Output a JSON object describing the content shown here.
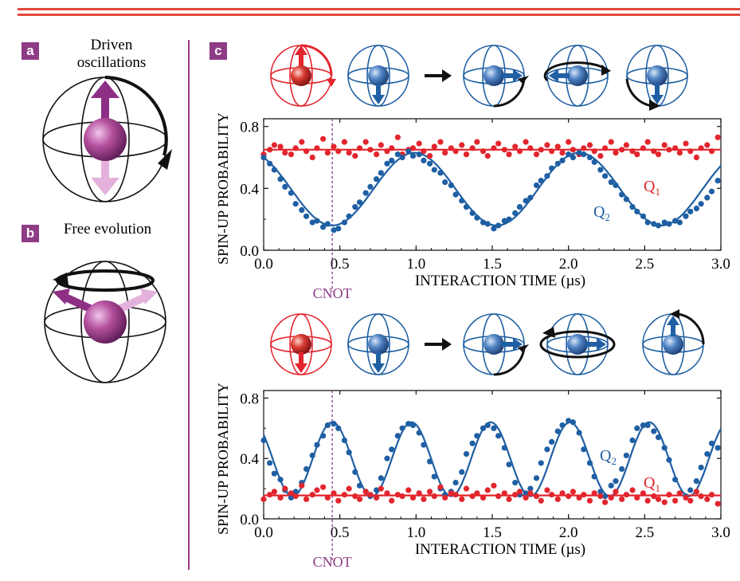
{
  "panels": {
    "a": {
      "label": "a",
      "caption": "Driven oscillations"
    },
    "b": {
      "label": "b",
      "caption": "Free evolution"
    },
    "c": {
      "label": "c"
    }
  },
  "colors": {
    "q1": "#e3252d",
    "q2": "#1f5fa3",
    "marker": "#8e3c86",
    "rule": "#e2493b",
    "sphere_icon": "#1f5fa3"
  },
  "chart_data": [
    {
      "type": "scatter",
      "title": "",
      "xlabel": "INTERACTION TIME (µs)",
      "ylabel": "SPIN-UP PROBABILITY",
      "xlim": [
        0,
        3.0
      ],
      "ylim": [
        0,
        0.85
      ],
      "xticks": [
        "0.0",
        "0.5",
        "1.0",
        "1.5",
        "2.0",
        "2.5",
        "3.0"
      ],
      "yticks": [
        "0.0",
        "0.4",
        "0.8"
      ],
      "grid": false,
      "marker": {
        "label": "CNOT",
        "x": 0.45
      },
      "series": [
        {
          "name": "Q1",
          "name_main": "Q",
          "name_sub": "1",
          "color": "#e3252d",
          "fit": {
            "kind": "constant",
            "value": 0.65
          },
          "x": [
            0.0,
            0.04,
            0.07,
            0.11,
            0.14,
            0.18,
            0.21,
            0.25,
            0.28,
            0.32,
            0.35,
            0.39,
            0.42,
            0.46,
            0.49,
            0.53,
            0.56,
            0.6,
            0.63,
            0.67,
            0.7,
            0.74,
            0.77,
            0.81,
            0.84,
            0.88,
            0.91,
            0.95,
            0.98,
            1.02,
            1.05,
            1.09,
            1.12,
            1.16,
            1.19,
            1.23,
            1.26,
            1.3,
            1.33,
            1.37,
            1.4,
            1.44,
            1.47,
            1.51,
            1.54,
            1.58,
            1.61,
            1.65,
            1.68,
            1.72,
            1.75,
            1.79,
            1.82,
            1.86,
            1.89,
            1.93,
            1.96,
            2.0,
            2.03,
            2.07,
            2.1,
            2.14,
            2.17,
            2.21,
            2.24,
            2.28,
            2.31,
            2.35,
            2.38,
            2.42,
            2.45,
            2.49,
            2.52,
            2.56,
            2.59,
            2.63,
            2.66,
            2.7,
            2.73,
            2.77,
            2.8,
            2.84,
            2.87,
            2.91,
            2.94,
            2.98
          ],
          "y": [
            0.62,
            0.65,
            0.68,
            0.67,
            0.63,
            0.62,
            0.66,
            0.7,
            0.64,
            0.6,
            0.66,
            0.72,
            0.63,
            0.67,
            0.64,
            0.7,
            0.63,
            0.61,
            0.66,
            0.7,
            0.65,
            0.62,
            0.68,
            0.64,
            0.66,
            0.73,
            0.62,
            0.65,
            0.66,
            0.69,
            0.64,
            0.61,
            0.67,
            0.7,
            0.63,
            0.66,
            0.64,
            0.68,
            0.62,
            0.66,
            0.7,
            0.64,
            0.61,
            0.66,
            0.69,
            0.65,
            0.62,
            0.67,
            0.64,
            0.7,
            0.66,
            0.62,
            0.65,
            0.68,
            0.64,
            0.67,
            0.63,
            0.7,
            0.65,
            0.62,
            0.66,
            0.68,
            0.64,
            0.61,
            0.66,
            0.7,
            0.63,
            0.65,
            0.68,
            0.64,
            0.62,
            0.66,
            0.7,
            0.64,
            0.62,
            0.68,
            0.65,
            0.66,
            0.63,
            0.69,
            0.64,
            0.6,
            0.66,
            0.68,
            0.64,
            0.73
          ]
        },
        {
          "name": "Q2",
          "name_main": "Q",
          "name_sub": "2",
          "color": "#1f5fa3",
          "fit": {
            "kind": "cosine",
            "mean": 0.395,
            "amplitude": 0.235,
            "period": 1.08,
            "phase_x": 0.45,
            "sign": -1
          },
          "x": [
            0.0,
            0.04,
            0.07,
            0.11,
            0.14,
            0.18,
            0.21,
            0.25,
            0.28,
            0.32,
            0.35,
            0.39,
            0.42,
            0.46,
            0.49,
            0.53,
            0.56,
            0.6,
            0.63,
            0.67,
            0.7,
            0.74,
            0.77,
            0.81,
            0.84,
            0.88,
            0.91,
            0.95,
            0.98,
            1.02,
            1.05,
            1.09,
            1.12,
            1.16,
            1.19,
            1.23,
            1.26,
            1.3,
            1.33,
            1.37,
            1.4,
            1.44,
            1.47,
            1.51,
            1.54,
            1.58,
            1.61,
            1.65,
            1.68,
            1.72,
            1.75,
            1.79,
            1.82,
            1.86,
            1.89,
            1.93,
            1.96,
            2.0,
            2.03,
            2.07,
            2.1,
            2.14,
            2.17,
            2.21,
            2.24,
            2.28,
            2.31,
            2.35,
            2.38,
            2.42,
            2.45,
            2.49,
            2.52,
            2.56,
            2.59,
            2.63,
            2.66,
            2.7,
            2.73,
            2.77,
            2.8,
            2.84,
            2.87,
            2.91,
            2.94,
            2.98
          ],
          "y": [
            0.6,
            0.56,
            0.52,
            0.46,
            0.41,
            0.37,
            0.3,
            0.26,
            0.22,
            0.18,
            0.19,
            0.15,
            0.17,
            0.13,
            0.14,
            0.18,
            0.22,
            0.28,
            0.31,
            0.37,
            0.41,
            0.46,
            0.5,
            0.56,
            0.58,
            0.62,
            0.6,
            0.64,
            0.61,
            0.62,
            0.58,
            0.56,
            0.52,
            0.5,
            0.44,
            0.42,
            0.36,
            0.32,
            0.28,
            0.24,
            0.21,
            0.18,
            0.17,
            0.14,
            0.16,
            0.19,
            0.2,
            0.24,
            0.28,
            0.32,
            0.34,
            0.42,
            0.45,
            0.48,
            0.53,
            0.56,
            0.58,
            0.62,
            0.6,
            0.63,
            0.62,
            0.6,
            0.57,
            0.52,
            0.48,
            0.44,
            0.42,
            0.36,
            0.33,
            0.28,
            0.25,
            0.22,
            0.18,
            0.17,
            0.16,
            0.18,
            0.17,
            0.19,
            0.18,
            0.22,
            0.25,
            0.27,
            0.3,
            0.34,
            0.38,
            0.45
          ]
        }
      ]
    },
    {
      "type": "scatter",
      "title": "",
      "xlabel": "INTERACTION TIME (µs)",
      "ylabel": "SPIN-UP PROBABILITY",
      "xlim": [
        0,
        3.0
      ],
      "ylim": [
        0,
        0.85
      ],
      "xticks": [
        "0.0",
        "0.5",
        "1.0",
        "1.5",
        "2.0",
        "2.5",
        "3.0"
      ],
      "yticks": [
        "0.0",
        "0.4",
        "0.8"
      ],
      "grid": false,
      "marker": {
        "label": "CNOT",
        "x": 0.45
      },
      "series": [
        {
          "name": "Q2",
          "name_main": "Q",
          "name_sub": "2",
          "color": "#1f5fa3",
          "fit": {
            "kind": "cosine",
            "mean": 0.395,
            "amplitude": 0.245,
            "period": 0.52,
            "phase_x": 0.45,
            "sign": 1
          },
          "x": [
            0.0,
            0.04,
            0.07,
            0.11,
            0.14,
            0.18,
            0.21,
            0.25,
            0.28,
            0.32,
            0.35,
            0.39,
            0.42,
            0.46,
            0.49,
            0.53,
            0.56,
            0.6,
            0.63,
            0.67,
            0.7,
            0.74,
            0.77,
            0.81,
            0.84,
            0.88,
            0.91,
            0.95,
            0.98,
            1.02,
            1.05,
            1.09,
            1.12,
            1.16,
            1.19,
            1.23,
            1.26,
            1.3,
            1.33,
            1.37,
            1.4,
            1.44,
            1.47,
            1.51,
            1.54,
            1.58,
            1.61,
            1.65,
            1.68,
            1.72,
            1.75,
            1.79,
            1.82,
            1.86,
            1.89,
            1.93,
            1.96,
            2.0,
            2.03,
            2.07,
            2.1,
            2.14,
            2.17,
            2.21,
            2.24,
            2.28,
            2.31,
            2.35,
            2.38,
            2.42,
            2.45,
            2.49,
            2.52,
            2.56,
            2.59,
            2.63,
            2.66,
            2.7,
            2.73,
            2.77,
            2.8,
            2.84,
            2.87,
            2.91,
            2.94,
            2.98
          ],
          "y": [
            0.52,
            0.37,
            0.3,
            0.26,
            0.19,
            0.14,
            0.18,
            0.24,
            0.33,
            0.42,
            0.49,
            0.55,
            0.62,
            0.63,
            0.6,
            0.52,
            0.44,
            0.31,
            0.22,
            0.18,
            0.15,
            0.19,
            0.27,
            0.4,
            0.46,
            0.55,
            0.6,
            0.63,
            0.62,
            0.57,
            0.49,
            0.38,
            0.28,
            0.2,
            0.16,
            0.18,
            0.24,
            0.31,
            0.43,
            0.5,
            0.55,
            0.6,
            0.62,
            0.6,
            0.55,
            0.47,
            0.36,
            0.24,
            0.16,
            0.17,
            0.2,
            0.27,
            0.37,
            0.46,
            0.51,
            0.58,
            0.62,
            0.65,
            0.64,
            0.57,
            0.46,
            0.37,
            0.28,
            0.18,
            0.15,
            0.22,
            0.25,
            0.33,
            0.42,
            0.52,
            0.6,
            0.62,
            0.62,
            0.58,
            0.54,
            0.47,
            0.39,
            0.26,
            0.17,
            0.15,
            0.19,
            0.25,
            0.34,
            0.43,
            0.5,
            0.47
          ]
        },
        {
          "name": "Q1",
          "name_main": "Q",
          "name_sub": "1",
          "color": "#e3252d",
          "fit": {
            "kind": "constant",
            "value": 0.155
          },
          "x": [
            0.0,
            0.04,
            0.07,
            0.11,
            0.14,
            0.18,
            0.21,
            0.25,
            0.28,
            0.32,
            0.35,
            0.39,
            0.42,
            0.46,
            0.49,
            0.53,
            0.56,
            0.6,
            0.63,
            0.67,
            0.7,
            0.74,
            0.77,
            0.81,
            0.84,
            0.88,
            0.91,
            0.95,
            0.98,
            1.02,
            1.05,
            1.09,
            1.12,
            1.16,
            1.19,
            1.23,
            1.26,
            1.3,
            1.33,
            1.37,
            1.4,
            1.44,
            1.47,
            1.51,
            1.54,
            1.58,
            1.61,
            1.65,
            1.68,
            1.72,
            1.75,
            1.79,
            1.82,
            1.86,
            1.89,
            1.93,
            1.96,
            2.0,
            2.03,
            2.07,
            2.1,
            2.14,
            2.17,
            2.21,
            2.24,
            2.28,
            2.31,
            2.35,
            2.38,
            2.42,
            2.45,
            2.49,
            2.52,
            2.56,
            2.59,
            2.63,
            2.66,
            2.7,
            2.73,
            2.77,
            2.8,
            2.84,
            2.87,
            2.91,
            2.94,
            2.98
          ],
          "y": [
            0.13,
            0.16,
            0.18,
            0.14,
            0.2,
            0.17,
            0.15,
            0.22,
            0.13,
            0.16,
            0.19,
            0.21,
            0.14,
            0.17,
            0.12,
            0.16,
            0.2,
            0.15,
            0.13,
            0.18,
            0.16,
            0.14,
            0.2,
            0.17,
            0.12,
            0.16,
            0.15,
            0.19,
            0.14,
            0.17,
            0.13,
            0.18,
            0.15,
            0.21,
            0.14,
            0.17,
            0.16,
            0.13,
            0.2,
            0.15,
            0.17,
            0.14,
            0.19,
            0.22,
            0.15,
            0.17,
            0.13,
            0.16,
            0.18,
            0.14,
            0.17,
            0.15,
            0.12,
            0.19,
            0.16,
            0.13,
            0.17,
            0.15,
            0.18,
            0.14,
            0.16,
            0.12,
            0.17,
            0.15,
            0.11,
            0.14,
            0.18,
            0.13,
            0.16,
            0.19,
            0.14,
            0.17,
            0.12,
            0.15,
            0.13,
            0.11,
            0.16,
            0.12,
            0.17,
            0.14,
            0.12,
            0.18,
            0.15,
            0.13,
            0.16,
            0.1
          ]
        }
      ]
    }
  ]
}
